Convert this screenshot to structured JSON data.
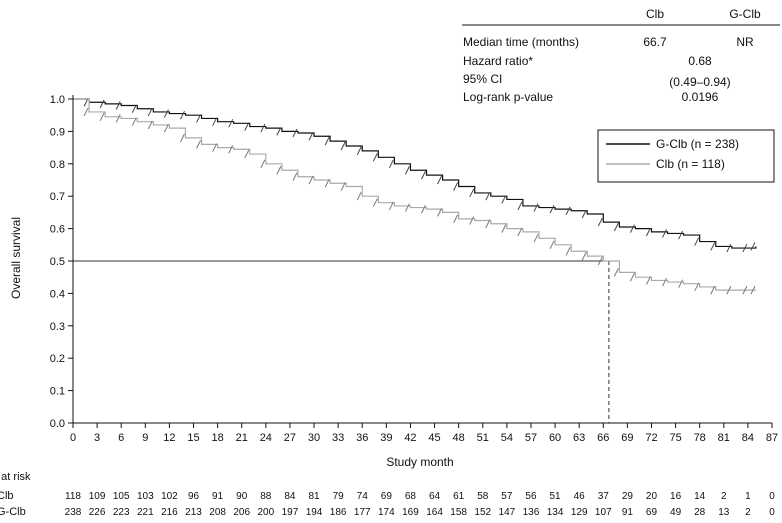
{
  "chart_data": {
    "type": "line",
    "xlabel": "Study month",
    "ylabel": "Overall survival",
    "xlim": [
      0,
      87
    ],
    "ylim": [
      0,
      1.0
    ],
    "x_ticks": [
      0,
      3,
      6,
      9,
      12,
      15,
      18,
      21,
      24,
      27,
      30,
      33,
      36,
      39,
      42,
      45,
      48,
      51,
      54,
      57,
      60,
      63,
      66,
      69,
      72,
      75,
      78,
      81,
      84,
      87
    ],
    "y_ticks": [
      0.0,
      0.1,
      0.2,
      0.3,
      0.4,
      0.5,
      0.6,
      0.7,
      0.8,
      0.9,
      1.0
    ],
    "y_tick_labels": [
      "0.0",
      "0.1",
      "0.2",
      "0.3",
      "0.4",
      "0.5",
      "0.6",
      "0.7",
      "0.8",
      "0.9",
      "1.0"
    ],
    "grid": false,
    "legend_position": "right",
    "series": [
      {
        "name": "G-Clb (n = 238)",
        "color": "#111111",
        "x": [
          0,
          2,
          4,
          6,
          8,
          10,
          12,
          14,
          16,
          18,
          20,
          22,
          24,
          26,
          28,
          30,
          32,
          34,
          36,
          38,
          40,
          42,
          44,
          46,
          48,
          50,
          52,
          54,
          56,
          58,
          60,
          62,
          64,
          66,
          68,
          70,
          72,
          74,
          76,
          78,
          80,
          82,
          84,
          85
        ],
        "y": [
          1.0,
          0.99,
          0.985,
          0.98,
          0.97,
          0.96,
          0.955,
          0.95,
          0.94,
          0.93,
          0.925,
          0.915,
          0.91,
          0.9,
          0.895,
          0.885,
          0.87,
          0.855,
          0.84,
          0.82,
          0.8,
          0.78,
          0.765,
          0.75,
          0.73,
          0.71,
          0.7,
          0.69,
          0.67,
          0.665,
          0.66,
          0.655,
          0.645,
          0.62,
          0.605,
          0.6,
          0.59,
          0.585,
          0.58,
          0.56,
          0.545,
          0.54,
          0.54,
          0.545
        ]
      },
      {
        "name": "Clb (n = 118)",
        "color": "#aaaaaa",
        "x": [
          0,
          2,
          4,
          6,
          8,
          10,
          12,
          14,
          16,
          18,
          20,
          22,
          24,
          26,
          28,
          30,
          32,
          34,
          36,
          38,
          40,
          42,
          44,
          46,
          48,
          50,
          52,
          54,
          56,
          58,
          60,
          62,
          64,
          66,
          68,
          70,
          72,
          74,
          76,
          78,
          80,
          82,
          84,
          85
        ],
        "y": [
          1.0,
          0.96,
          0.945,
          0.94,
          0.93,
          0.92,
          0.91,
          0.88,
          0.86,
          0.85,
          0.845,
          0.83,
          0.8,
          0.78,
          0.76,
          0.75,
          0.74,
          0.73,
          0.7,
          0.68,
          0.67,
          0.665,
          0.66,
          0.65,
          0.63,
          0.625,
          0.615,
          0.6,
          0.59,
          0.57,
          0.55,
          0.53,
          0.515,
          0.5,
          0.465,
          0.45,
          0.44,
          0.435,
          0.43,
          0.42,
          0.41,
          0.41,
          0.41,
          0.41
        ]
      }
    ],
    "reference_lines": {
      "median_y": 0.5,
      "median_x": 66.7
    },
    "stats_table": {
      "headers": [
        "",
        "Clb",
        "G-Clb"
      ],
      "rows": [
        {
          "label": "Median time (months)",
          "clb": "66.7",
          "gclb": "NR"
        },
        {
          "label": "Hazard ratio*",
          "value": "0.68"
        },
        {
          "label": "95% CI",
          "value": "(0.49–0.94)"
        },
        {
          "label": "Log-rank p-value",
          "value": "0.0196"
        }
      ]
    },
    "risk_table": {
      "title": "n at risk",
      "rows": [
        {
          "label": "Clb",
          "values": [
            "118",
            "109",
            "105",
            "103",
            "102",
            "96",
            "91",
            "90",
            "88",
            "84",
            "81",
            "79",
            "74",
            "69",
            "68",
            "64",
            "61",
            "58",
            "57",
            "56",
            "51",
            "46",
            "37",
            "29",
            "20",
            "16",
            "14",
            "2",
            "1",
            "0"
          ]
        },
        {
          "label": "G-Clb",
          "values": [
            "238",
            "226",
            "223",
            "221",
            "216",
            "213",
            "208",
            "206",
            "200",
            "197",
            "194",
            "186",
            "177",
            "174",
            "169",
            "164",
            "158",
            "152",
            "147",
            "136",
            "134",
            "129",
            "107",
            "91",
            "69",
            "49",
            "28",
            "13",
            "2",
            "0"
          ]
        }
      ]
    }
  }
}
